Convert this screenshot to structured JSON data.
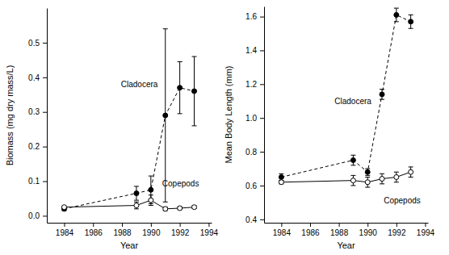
{
  "chart_data": [
    {
      "type": "line",
      "x_label": "Year",
      "y_label": "Biomass (mg dry mass/L)",
      "x": [
        1984,
        1989,
        1990,
        1991,
        1992,
        1993
      ],
      "series": [
        {
          "name": "Cladocera",
          "color": "#000000",
          "marker": "circle",
          "line_style": "dashed",
          "values": [
            0.02,
            0.065,
            0.075,
            0.29,
            0.37,
            0.36
          ],
          "errors": [
            0.005,
            0.02,
            0.04,
            0.25,
            0.075,
            0.1
          ]
        },
        {
          "name": "Copepods",
          "color": "#000000",
          "marker": "open_circle",
          "line_style": "solid",
          "values": [
            0.025,
            0.03,
            0.045,
            0.02,
            0.022,
            0.025
          ],
          "errors": [
            0.003,
            0.01,
            0.015,
            0.005,
            0.004,
            0.004
          ]
        }
      ],
      "xlim": [
        1982.8,
        1994.2
      ],
      "xticks": [
        1984,
        1986,
        1988,
        1990,
        1992,
        1994
      ],
      "ylim": [
        -0.02,
        0.6
      ],
      "yticks": [
        {
          "value": 0,
          "label": "0.0"
        },
        0.1,
        0.2,
        0.3,
        0.4,
        0.5
      ]
    },
    {
      "type": "line",
      "x_label": "Year",
      "y_label": "Mean Body Length (mm)",
      "x": [
        1984,
        1989,
        1990,
        1991,
        1992,
        1993
      ],
      "series": [
        {
          "name": "Cladocera",
          "color": "#000000",
          "marker": "circle",
          "line_style": "dashed",
          "values": [
            0.65,
            0.75,
            0.68,
            1.14,
            1.61,
            1.57
          ],
          "errors": [
            0.02,
            0.03,
            0.02,
            0.03,
            0.04,
            0.04
          ]
        },
        {
          "name": "Copepods",
          "color": "#000000",
          "marker": "open_circle",
          "line_style": "solid",
          "values": [
            0.62,
            0.63,
            0.62,
            0.64,
            0.65,
            0.68
          ],
          "errors": [
            0.01,
            0.03,
            0.03,
            0.03,
            0.03,
            0.03
          ]
        }
      ],
      "xlim": [
        1982.8,
        1994.2
      ],
      "xticks": [
        1984,
        1986,
        1988,
        1990,
        1992,
        1994
      ],
      "ylim": [
        0.38,
        1.66
      ],
      "yticks": [
        0.4,
        0.6,
        0.8,
        {
          "value": 1,
          "label": "1.0"
        },
        1.2,
        1.4,
        1.6
      ]
    }
  ]
}
